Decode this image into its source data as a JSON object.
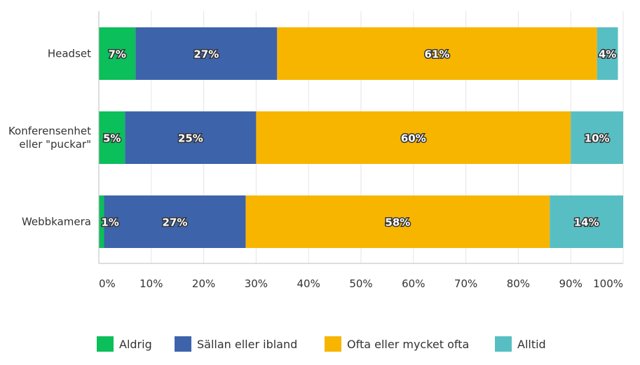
{
  "chart_data": {
    "type": "bar",
    "orientation": "horizontal",
    "stacked": true,
    "categories": [
      "Headset",
      "Konferensenhet eller \"puckar\"",
      "Webbkamera"
    ],
    "category_lines": [
      [
        "Headset"
      ],
      [
        "Konferensenhet",
        "eller \"puckar\""
      ],
      [
        "Webbkamera"
      ]
    ],
    "series": [
      {
        "name": "Aldrig",
        "color": "#0bbf5a",
        "values": [
          7,
          5,
          1
        ],
        "labels": [
          "7%",
          "5%",
          "1%"
        ]
      },
      {
        "name": "Sällan eller ibland",
        "color": "#3d63ab",
        "values": [
          27,
          25,
          27
        ],
        "labels": [
          "27%",
          "25%",
          "27%"
        ]
      },
      {
        "name": "Ofta eller mycket ofta",
        "color": "#f7b500",
        "values": [
          61,
          60,
          58
        ],
        "labels": [
          "61%",
          "60%",
          "58%"
        ]
      },
      {
        "name": "Alltid",
        "color": "#57bfc3",
        "values": [
          4,
          10,
          14
        ],
        "labels": [
          "4%",
          "10%",
          "14%"
        ]
      }
    ],
    "xlim": [
      0,
      100
    ],
    "xticks": [
      "0%",
      "10%",
      "20%",
      "30%",
      "40%",
      "50%",
      "60%",
      "70%",
      "80%",
      "90%",
      "100%"
    ],
    "grid": true,
    "legend_position": "bottom"
  }
}
